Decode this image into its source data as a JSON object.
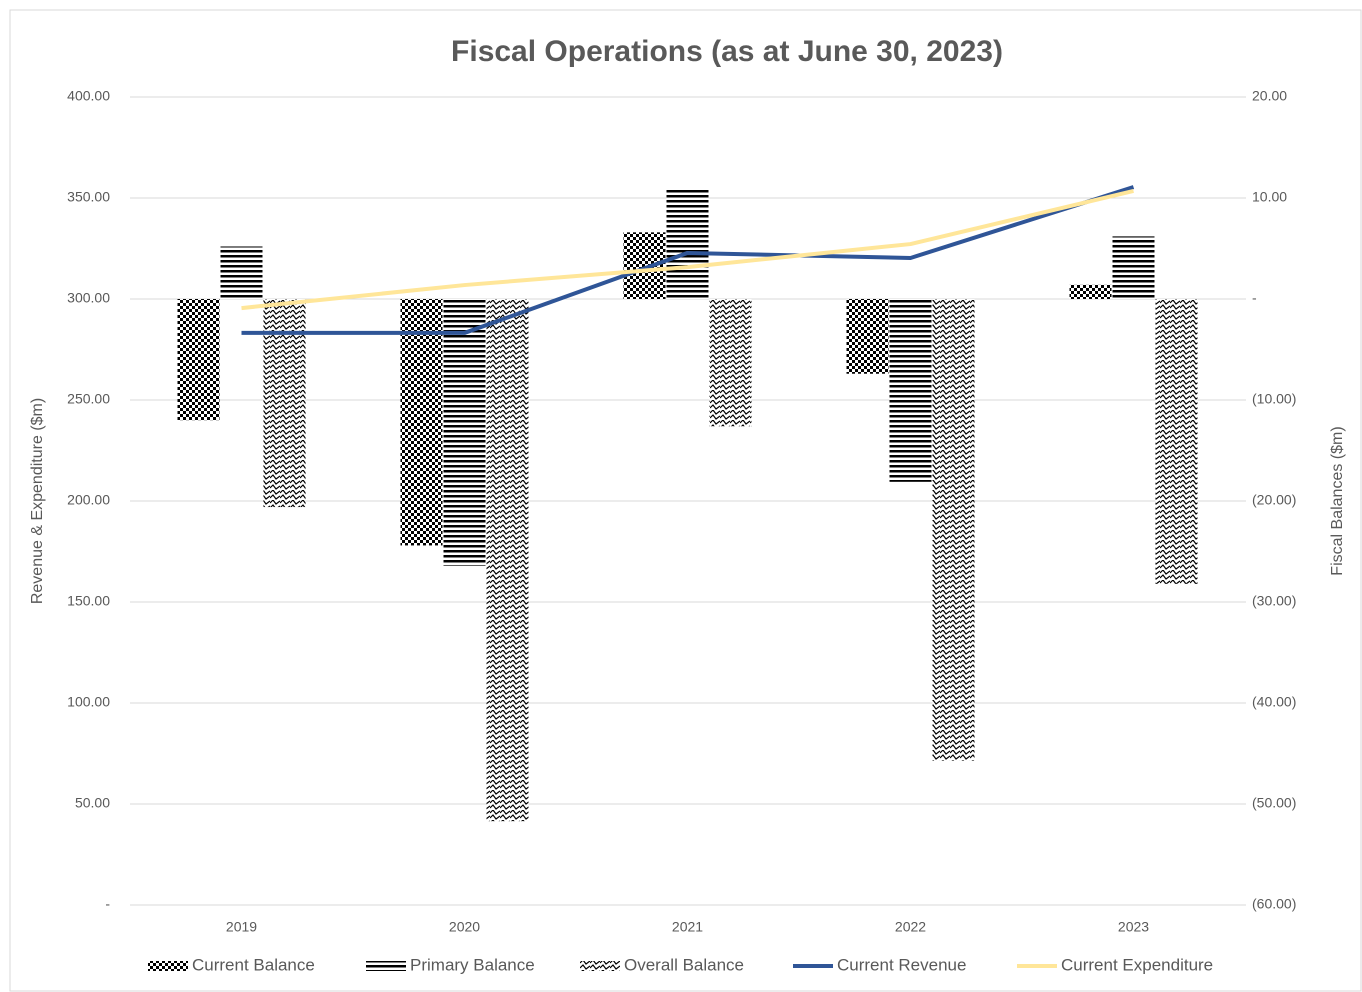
{
  "chart_data": {
    "type": "bar",
    "title": "Fiscal Operations (as at June 30, 2023)",
    "y_label": "Revenue & Expenditure ($m)",
    "y2_label": "Fiscal Balances ($m)",
    "categories": [
      "2019",
      "2020",
      "2021",
      "2022",
      "2023"
    ],
    "series": [
      {
        "name": "Current Balance",
        "type": "bar",
        "axis": "y2",
        "color": "#000000",
        "pattern": "checker",
        "values": [
          -12.0,
          -24.4,
          6.6,
          -7.4,
          1.4
        ]
      },
      {
        "name": "Primary Balance",
        "type": "bar",
        "axis": "y2",
        "color": "#000000",
        "pattern": "horizontal",
        "values": [
          5.2,
          -26.4,
          11.0,
          -18.1,
          6.2
        ]
      },
      {
        "name": "Overall Balance",
        "type": "bar",
        "axis": "y2",
        "color": "#000000",
        "pattern": "zigzag",
        "values": [
          -20.6,
          -51.7,
          -12.6,
          -45.7,
          -28.2
        ]
      },
      {
        "name": "Current Revenue",
        "type": "line",
        "axis": "y",
        "color": "#2f5597",
        "values": [
          283.2,
          283.2,
          322.8,
          320.3,
          355.4
        ]
      },
      {
        "name": "Current Expenditure",
        "type": "line",
        "axis": "y",
        "color": "#ffe699",
        "values": [
          295.5,
          306.9,
          315.8,
          327.2,
          353.5
        ]
      }
    ],
    "ylim": [
      0,
      400
    ],
    "yticks": [
      {
        "value": 0,
        "label": "-"
      },
      {
        "value": 50,
        "label": "50.00"
      },
      {
        "value": 100,
        "label": "100.00"
      },
      {
        "value": 150,
        "label": "150.00"
      },
      {
        "value": 200,
        "label": "200.00"
      },
      {
        "value": 250,
        "label": "250.00"
      },
      {
        "value": 300,
        "label": "300.00"
      },
      {
        "value": 350,
        "label": "350.00"
      },
      {
        "value": 400,
        "label": "400.00"
      }
    ],
    "y2lim": [
      -60,
      20
    ],
    "y2ticks": [
      {
        "value": -60,
        "label": "(60.00)"
      },
      {
        "value": -50,
        "label": "(50.00)"
      },
      {
        "value": -40,
        "label": "(40.00)"
      },
      {
        "value": -30,
        "label": "(30.00)"
      },
      {
        "value": -20,
        "label": "(20.00)"
      },
      {
        "value": -10,
        "label": "(10.00)"
      },
      {
        "value": 0,
        "label": "-"
      },
      {
        "value": 10,
        "label": "10.00"
      },
      {
        "value": 20,
        "label": "20.00"
      }
    ],
    "grid": true,
    "legend": "bottom"
  }
}
